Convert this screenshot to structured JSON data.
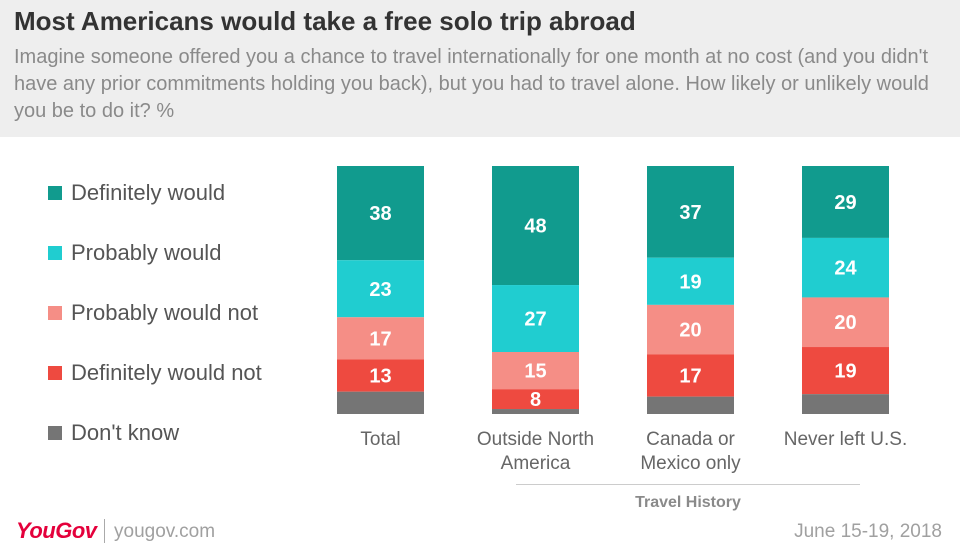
{
  "header": {
    "title": "Most Americans would take a free solo trip abroad",
    "subtitle": "Imagine someone offered you a chance to travel internationally for one month at no cost (and you didn't have any prior commitments holding you back), but you had to travel alone. How likely or unlikely would you be to do it? %"
  },
  "footer": {
    "logo": "YouGov",
    "site": "yougov.com",
    "date": "June 15-19, 2018"
  },
  "chart_data": {
    "type": "bar",
    "stacked": true,
    "title": "Most Americans would take a free solo trip abroad",
    "categories": [
      "Total",
      "Outside North America",
      "Canada or Mexico only",
      "Never left U.S."
    ],
    "category_lines": [
      [
        "Total"
      ],
      [
        "Outside North",
        "America"
      ],
      [
        "Canada or",
        "Mexico only"
      ],
      [
        "Never left U.S."
      ]
    ],
    "group_label": "Travel History",
    "ylim": [
      0,
      100
    ],
    "legend_position": "left",
    "series": [
      {
        "name": "Definitely would",
        "color": "#119b8e",
        "values": [
          38,
          48,
          37,
          29
        ]
      },
      {
        "name": "Probably would",
        "color": "#20cdd0",
        "values": [
          23,
          27,
          19,
          24
        ]
      },
      {
        "name": "Probably would not",
        "color": "#f58e86",
        "values": [
          17,
          15,
          20,
          20
        ]
      },
      {
        "name": "Definitely would not",
        "color": "#ee4a40",
        "values": [
          13,
          8,
          17,
          19
        ]
      },
      {
        "name": "Don't know",
        "color": "#757575",
        "values": [
          9,
          2,
          7,
          8
        ]
      }
    ],
    "value_label_series": [
      0,
      1,
      2,
      3
    ]
  }
}
